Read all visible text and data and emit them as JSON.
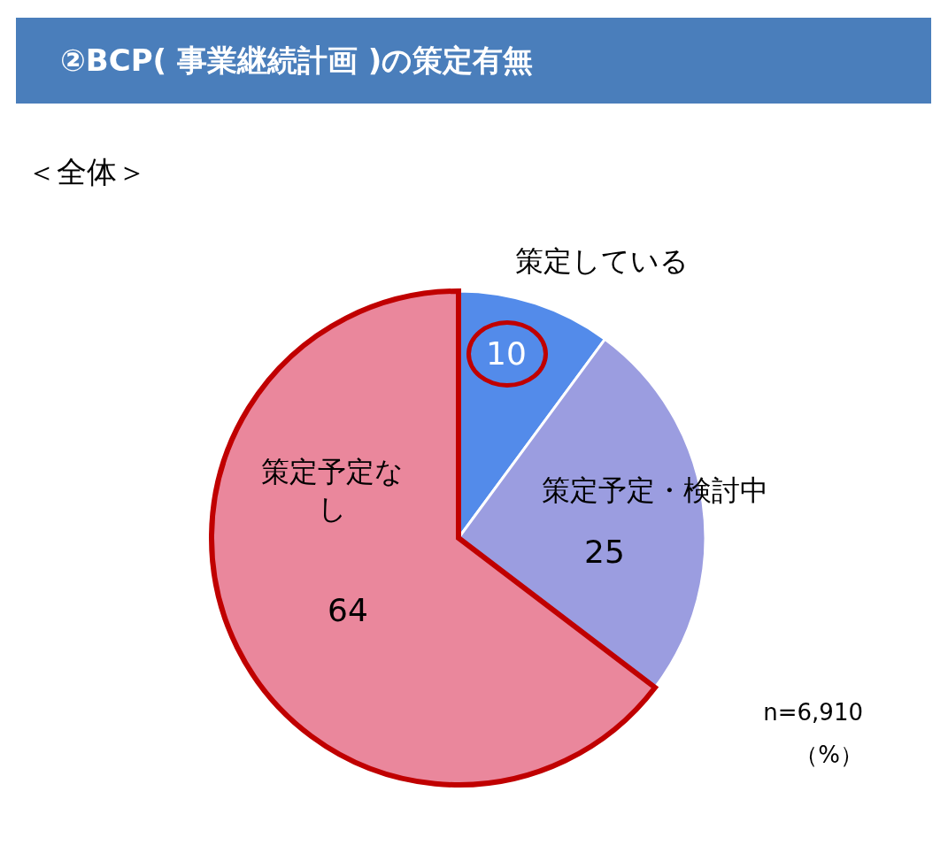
{
  "chart_data": {
    "type": "pie",
    "title": "②BCP( 事業継続計画 )の策定有無",
    "subtitle": "＜全体＞",
    "categories": [
      "策定している",
      "策定予定・検討中",
      "策定予定なし"
    ],
    "values": [
      10,
      25,
      64
    ],
    "colors": [
      "#538bea",
      "#9b9de0",
      "#ea879c"
    ],
    "data_labels": true,
    "legend": false,
    "annotations": [
      "n=6,910",
      "（%）"
    ]
  }
}
